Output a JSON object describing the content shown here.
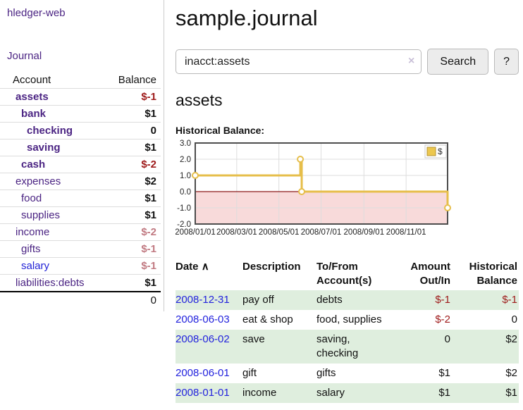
{
  "app": {
    "brand": "hledger-web"
  },
  "colors": {
    "purple_link": "#4b2483",
    "visited_link_blue": "#2424d6",
    "date_link_blue": "#2323dd",
    "negative_strong_red": "#9e1a1a",
    "negative_soft_red": "#c17a82",
    "row_stripe_green": "#dfeede",
    "chart_gold": "#e6be4a"
  },
  "sidebar": {
    "journal_label": "Journal",
    "accounts_table": {
      "headers": {
        "account": "Account",
        "balance": "Balance"
      },
      "rows": [
        {
          "name": "assets",
          "indent": 1,
          "bold": true,
          "balance": "$-1",
          "balance_class": "neg-strong"
        },
        {
          "name": "bank",
          "indent": 2,
          "bold": true,
          "balance": "$1",
          "balance_class": ""
        },
        {
          "name": "checking",
          "indent": 3,
          "bold": true,
          "balance": "0",
          "balance_class": ""
        },
        {
          "name": "saving",
          "indent": 3,
          "bold": true,
          "balance": "$1",
          "balance_class": ""
        },
        {
          "name": "cash",
          "indent": 2,
          "bold": true,
          "balance": "$-2",
          "balance_class": "neg-strong"
        },
        {
          "name": "expenses",
          "indent": 1,
          "bold": false,
          "balance": "$2",
          "balance_class": ""
        },
        {
          "name": "food",
          "indent": 2,
          "bold": false,
          "balance": "$1",
          "balance_class": ""
        },
        {
          "name": "supplies",
          "indent": 2,
          "bold": false,
          "balance": "$1",
          "balance_class": ""
        },
        {
          "name": "income",
          "indent": 1,
          "bold": false,
          "balance": "$-2",
          "balance_class": "neg-soft"
        },
        {
          "name": "gifts",
          "indent": 2,
          "bold": false,
          "balance": "$-1",
          "balance_class": "neg-soft"
        },
        {
          "name": "salary",
          "indent": 2,
          "bold": false,
          "visited": true,
          "balance": "$-1",
          "balance_class": "neg-soft"
        },
        {
          "name": "liabilities:debts",
          "indent": 1,
          "bold": false,
          "balance": "$1",
          "balance_class": ""
        }
      ],
      "total": "0"
    }
  },
  "header": {
    "title": "sample.journal"
  },
  "search": {
    "value": "inacct:assets",
    "clear_icon": "×",
    "button": "Search",
    "help_button": "?"
  },
  "account_page": {
    "title": "assets",
    "chart_label": "Historical Balance:"
  },
  "chart_data": {
    "type": "line",
    "title": "Historical Balance",
    "step": true,
    "series": [
      {
        "name": "$",
        "points": [
          {
            "x": "2008-01-01",
            "y": 1
          },
          {
            "x": "2008-06-01",
            "y": 2
          },
          {
            "x": "2008-06-03",
            "y": 0
          },
          {
            "x": "2008-12-31",
            "y": -1
          }
        ]
      }
    ],
    "x_range": [
      "2008-01-01",
      "2008-12-31"
    ],
    "ylim": [
      -2.0,
      3.0
    ],
    "yticks": [
      3.0,
      2.0,
      1.0,
      0.0,
      -1.0,
      -2.0
    ],
    "xticks": [
      "2008/01/01",
      "2008/03/01",
      "2008/05/01",
      "2008/07/01",
      "2008/09/01",
      "2008/11/01"
    ],
    "legend": {
      "label": "$",
      "position": "top-right"
    },
    "grid": true,
    "colors": {
      "line": "#e6be4a",
      "marker_fill": "#ffffff",
      "negative_region": "#f8dada",
      "zero_line": "#8c1a1a",
      "grid": "#dddddd",
      "frame": "#4d4d4d",
      "legend_fill": "#ecc74e",
      "legend_border": "#b39335",
      "tick_text": "#222222"
    }
  },
  "register": {
    "headers": {
      "date": "Date",
      "sort_asc_icon": "∧",
      "description": "Description",
      "accounts": "To/From Account(s)",
      "amount": "Amount Out/In",
      "balance": "Historical Balance"
    },
    "rows": [
      {
        "date": "2008-12-31",
        "description": "pay off",
        "accounts": "debts",
        "amount": "$-1",
        "balance": "$-1"
      },
      {
        "date": "2008-06-03",
        "description": "eat & shop",
        "accounts": "food, supplies",
        "amount": "$-2",
        "balance": "0"
      },
      {
        "date": "2008-06-02",
        "description": "save",
        "accounts": "saving, checking",
        "amount": "0",
        "balance": "$2"
      },
      {
        "date": "2008-06-01",
        "description": "gift",
        "accounts": "gifts",
        "amount": "$1",
        "balance": "$2"
      },
      {
        "date": "2008-01-01",
        "description": "income",
        "accounts": "salary",
        "amount": "$1",
        "balance": "$1"
      }
    ]
  }
}
